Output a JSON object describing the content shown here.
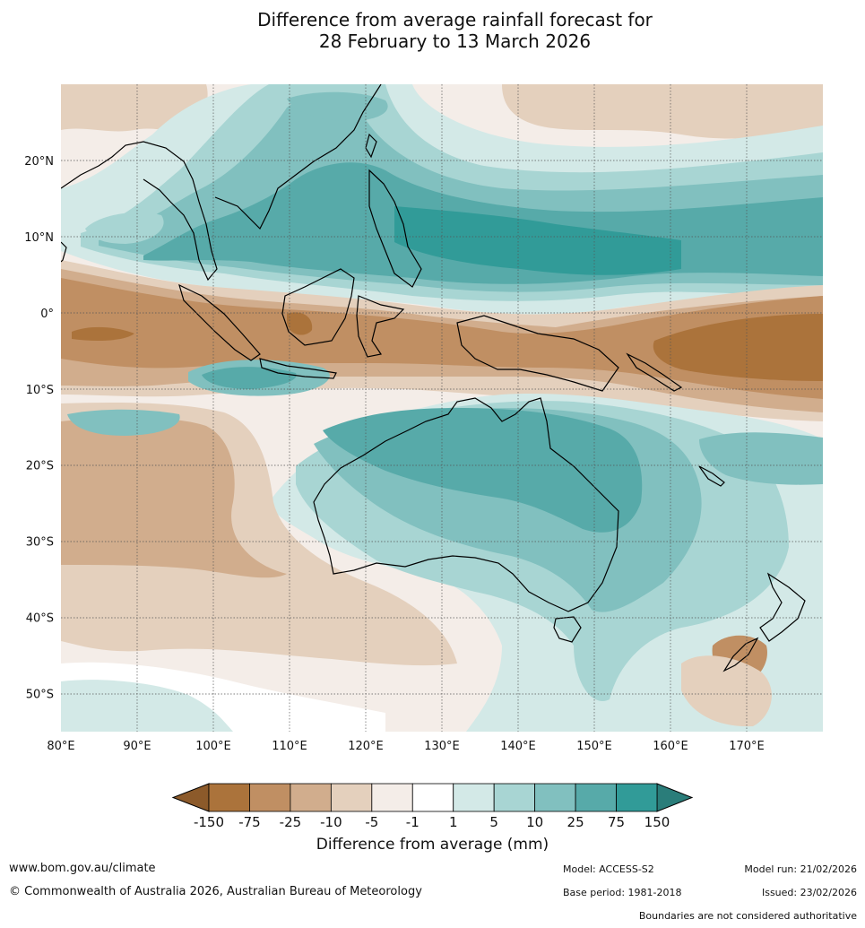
{
  "title": {
    "line1": "Difference from average rainfall forecast for",
    "line2": "28 February to 13 March 2026"
  },
  "map": {
    "lon_range": [
      80,
      180
    ],
    "lat_range": [
      -55,
      30
    ],
    "lon_ticks": [
      "80°E",
      "90°E",
      "100°E",
      "110°E",
      "120°E",
      "130°E",
      "140°E",
      "150°E",
      "160°E",
      "170°E"
    ],
    "lat_ticks": [
      "20°N",
      "10°N",
      "0°",
      "10°S",
      "20°S",
      "30°S",
      "40°S",
      "50°S"
    ]
  },
  "colorbar": {
    "ticks": [
      "-150",
      "-75",
      "-25",
      "-10",
      "-5",
      "-1",
      "1",
      "5",
      "10",
      "25",
      "75",
      "150"
    ],
    "colors": [
      "#ab733b",
      "#c08f63",
      "#d1ad8d",
      "#e4d0bd",
      "#f4ede8",
      "#ffffff",
      "#d3e9e7",
      "#a8d5d3",
      "#81c0bf",
      "#57aaa9",
      "#319b98"
    ],
    "low_extend_color": "#8c5a2a",
    "high_extend_color": "#2a7d7a",
    "label": "Difference from average (mm)"
  },
  "footer": {
    "website": "www.bom.gov.au/climate",
    "copyright": "© Commonwealth of Australia 2026, Australian Bureau of Meteorology",
    "model": "Model: ACCESS-S2",
    "base_period": "Base period: 1981-2018",
    "model_run": "Model run: 21/02/2026",
    "issued": "Issued: 23/02/2026",
    "disclaimer": "Boundaries are not considered authoritative"
  }
}
